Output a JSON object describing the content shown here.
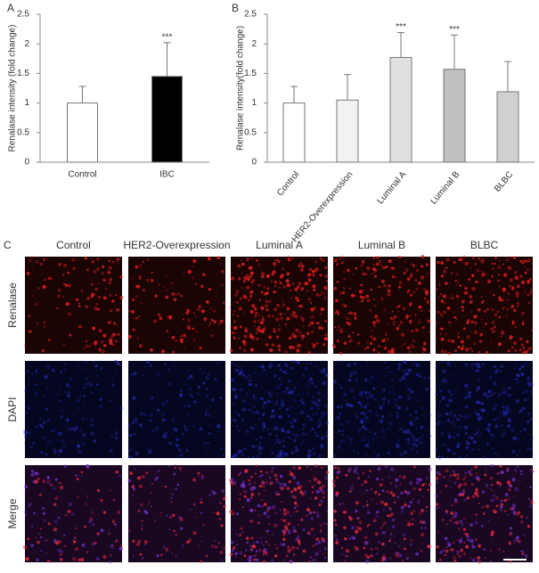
{
  "chart_data": [
    {
      "type": "bar",
      "panel": "A",
      "y_label": "Renalase  intensity (fold change)",
      "categories": [
        "Control",
        "IBC"
      ],
      "values": [
        1.0,
        1.45
      ],
      "errors": [
        0.28,
        0.57
      ],
      "colors": [
        "#ffffff",
        "#000000"
      ],
      "annotations": [
        null,
        "***"
      ],
      "ylim": [
        0,
        2.5
      ],
      "yticks": [
        0,
        0.5,
        1,
        1.5,
        2,
        2.5
      ]
    },
    {
      "type": "bar",
      "panel": "B",
      "y_label": "Renalase intensity(fold change)",
      "categories": [
        "Control",
        "HER2-Overexpression",
        "Luminal A",
        "Luminal B",
        "BLBC"
      ],
      "values": [
        1.0,
        1.05,
        1.77,
        1.57,
        1.19
      ],
      "errors": [
        0.28,
        0.43,
        0.42,
        0.58,
        0.51
      ],
      "colors": [
        "#ffffff",
        "#f2f2f2",
        "#e0e0e0",
        "#bfbfbf",
        "#d0d0d0"
      ],
      "annotations": [
        null,
        null,
        "***",
        "***",
        null
      ],
      "ylim": [
        0,
        2.5
      ],
      "yticks": [
        0,
        0.5,
        1,
        1.5,
        2,
        2.5
      ]
    }
  ],
  "panel_c": {
    "label": "C",
    "columns": [
      "Control",
      "HER2-Overexpression",
      "Luminal A",
      "Luminal B",
      "BLBC"
    ],
    "rows": [
      "Renalase",
      "DAPI",
      "Merge"
    ]
  }
}
